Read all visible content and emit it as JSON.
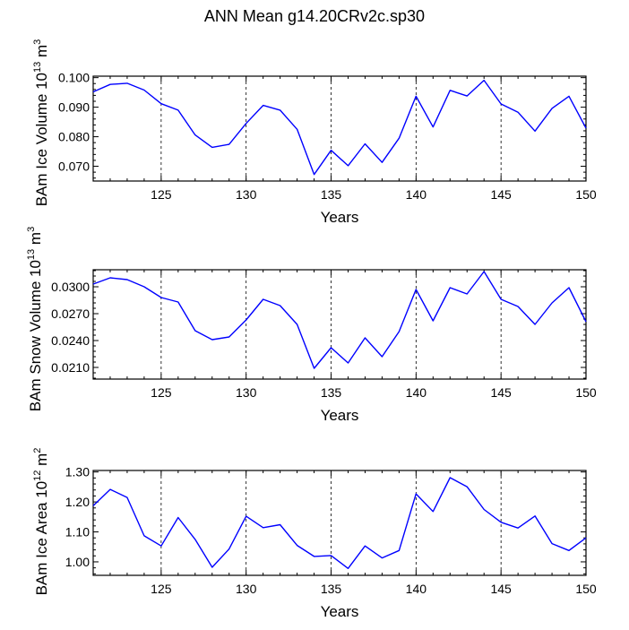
{
  "title": "ANN Mean g14.20CRv2c.sp30",
  "chart_data": [
    {
      "type": "line",
      "ylabel_main": "BAm Ice Volume 10",
      "ylabel_exp": "13",
      "ylabel_unit": " m",
      "ylabel_unit_exp": "3",
      "xlabel": "Years",
      "xlim": [
        121,
        150
      ],
      "ylim": [
        0.065,
        0.1005
      ],
      "xticks": [
        125,
        130,
        135,
        140,
        145,
        150
      ],
      "xtick_labels": [
        "125",
        "130",
        "135",
        "140",
        "145",
        "150"
      ],
      "yticks": [
        0.07,
        0.08,
        0.09,
        0.1
      ],
      "ytick_labels": [
        "0.070",
        "0.080",
        "0.090",
        "0.100"
      ],
      "line_color": "#0000ff",
      "x": [
        121,
        122,
        123,
        124,
        125,
        126,
        127,
        128,
        129,
        130,
        131,
        132,
        133,
        134,
        135,
        136,
        137,
        138,
        139,
        140,
        141,
        142,
        143,
        144,
        145,
        146,
        147,
        148,
        149,
        150
      ],
      "values": [
        0.0952,
        0.0977,
        0.0981,
        0.0958,
        0.0912,
        0.089,
        0.0806,
        0.0764,
        0.0774,
        0.0845,
        0.0906,
        0.089,
        0.0825,
        0.0672,
        0.0754,
        0.0702,
        0.0776,
        0.0713,
        0.0795,
        0.0937,
        0.0833,
        0.0957,
        0.0938,
        0.0991,
        0.0911,
        0.0883,
        0.0819,
        0.0896,
        0.0937,
        0.0829
      ]
    },
    {
      "type": "line",
      "ylabel_main": "BAm Snow Volume 10",
      "ylabel_exp": "13",
      "ylabel_unit": " m",
      "ylabel_unit_exp": "3",
      "xlabel": "Years",
      "xlim": [
        121,
        150
      ],
      "ylim": [
        0.0197,
        0.0319
      ],
      "xticks": [
        125,
        130,
        135,
        140,
        145,
        150
      ],
      "xtick_labels": [
        "125",
        "130",
        "135",
        "140",
        "145",
        "150"
      ],
      "yticks": [
        0.021,
        0.024,
        0.027,
        0.03
      ],
      "ytick_labels": [
        "0.0210",
        "0.0240",
        "0.0270",
        "0.0300"
      ],
      "line_color": "#0000ff",
      "x": [
        121,
        122,
        123,
        124,
        125,
        126,
        127,
        128,
        129,
        130,
        131,
        132,
        133,
        134,
        135,
        136,
        137,
        138,
        139,
        140,
        141,
        142,
        143,
        144,
        145,
        146,
        147,
        148,
        149,
        150
      ],
      "values": [
        0.0303,
        0.031,
        0.0308,
        0.03,
        0.0288,
        0.0283,
        0.0251,
        0.0241,
        0.0244,
        0.0263,
        0.0286,
        0.0279,
        0.0258,
        0.0209,
        0.0232,
        0.0215,
        0.0243,
        0.0222,
        0.025,
        0.0297,
        0.0262,
        0.0299,
        0.0292,
        0.0317,
        0.0286,
        0.0278,
        0.0258,
        0.0282,
        0.0299,
        0.0261
      ]
    },
    {
      "type": "line",
      "ylabel_main": "BAm Ice Area 10",
      "ylabel_exp": "12",
      "ylabel_unit": " m",
      "ylabel_unit_exp": "2",
      "xlabel": "Years",
      "xlim": [
        121,
        150
      ],
      "ylim": [
        0.955,
        1.305
      ],
      "xticks": [
        125,
        130,
        135,
        140,
        145,
        150
      ],
      "xtick_labels": [
        "125",
        "130",
        "135",
        "140",
        "145",
        "150"
      ],
      "yticks": [
        1.0,
        1.1,
        1.2,
        1.3
      ],
      "ytick_labels": [
        "1.00",
        "1.10",
        "1.20",
        "1.30"
      ],
      "line_color": "#0000ff",
      "x": [
        121,
        122,
        123,
        124,
        125,
        126,
        127,
        128,
        129,
        130,
        131,
        132,
        133,
        134,
        135,
        136,
        137,
        138,
        139,
        140,
        141,
        142,
        143,
        144,
        145,
        146,
        147,
        148,
        149,
        150
      ],
      "values": [
        1.187,
        1.242,
        1.215,
        1.087,
        1.053,
        1.148,
        1.075,
        0.982,
        1.043,
        1.152,
        1.114,
        1.124,
        1.055,
        1.018,
        1.021,
        0.978,
        1.053,
        1.013,
        1.038,
        1.227,
        1.168,
        1.281,
        1.251,
        1.175,
        1.132,
        1.113,
        1.153,
        1.061,
        1.038,
        1.08
      ]
    }
  ]
}
